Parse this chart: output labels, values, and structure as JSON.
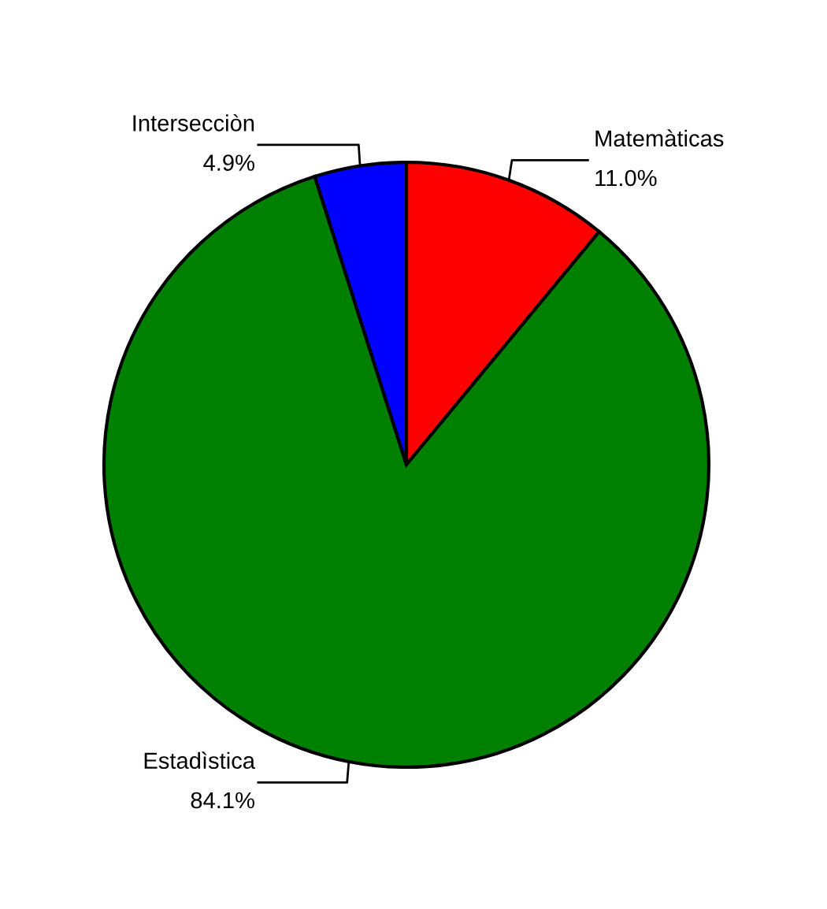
{
  "chart_data": {
    "type": "pie",
    "categories": [
      "Matemàticas",
      "Estadìstica",
      "Intersecciòn"
    ],
    "values": [
      11.0,
      84.1,
      4.9
    ],
    "colors": [
      "#ff0000",
      "#008000",
      "#0000ff"
    ],
    "value_labels": [
      "11.0%",
      "84.1%",
      "4.9%"
    ],
    "legend": false
  }
}
